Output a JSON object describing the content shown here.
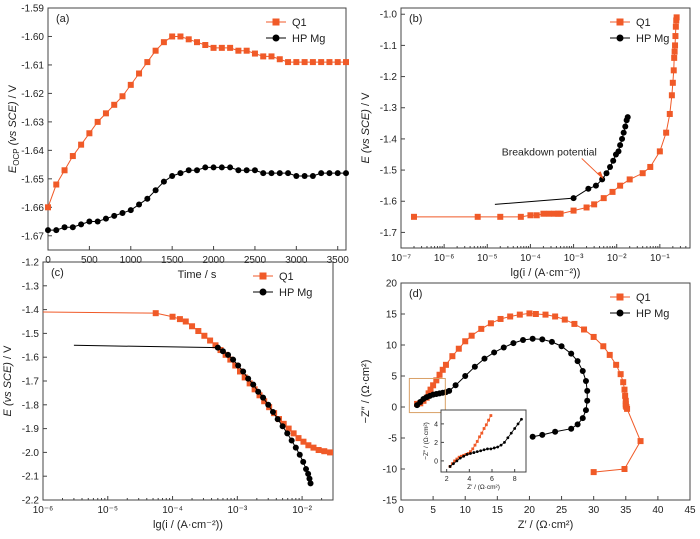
{
  "colors": {
    "q1": "#f05a28",
    "hp": "#000000",
    "axis": "#444444",
    "inset_box": "#d9a066"
  },
  "chart_data": [
    {
      "id": "a",
      "type": "line",
      "panel_label": "(a)",
      "xlabel": "Time / s",
      "ylabel_main": "E",
      "ylabel_sub": "OCP",
      "ylabel_paren": "(vs SCE)",
      "ylabel_tail": " / V",
      "xlim": [
        0,
        3600
      ],
      "ylim": [
        -1.675,
        -1.59
      ],
      "xticks": [
        0,
        500,
        1000,
        1500,
        2000,
        2500,
        3000,
        3500
      ],
      "xtick_labels": [
        "0",
        "500",
        "1000",
        "1500",
        "2000",
        "2500",
        "3000",
        "3500"
      ],
      "yticks": [
        -1.67,
        -1.66,
        -1.65,
        -1.64,
        -1.63,
        -1.62,
        -1.61,
        -1.6,
        -1.59
      ],
      "ytick_labels": [
        "-1.67",
        "-1.66",
        "-1.65",
        "-1.64",
        "-1.63",
        "-1.62",
        "-1.61",
        "-1.60",
        "-1.59"
      ],
      "legend": "top-right",
      "series": [
        {
          "name": "Q1",
          "marker": "square",
          "x": [
            0,
            100,
            200,
            300,
            400,
            500,
            600,
            700,
            800,
            900,
            1000,
            1100,
            1200,
            1300,
            1400,
            1500,
            1600,
            1700,
            1800,
            1900,
            2000,
            2100,
            2200,
            2300,
            2400,
            2500,
            2600,
            2700,
            2800,
            2900,
            3000,
            3100,
            3200,
            3300,
            3400,
            3500,
            3600
          ],
          "y": [
            -1.66,
            -1.652,
            -1.647,
            -1.642,
            -1.638,
            -1.634,
            -1.63,
            -1.627,
            -1.624,
            -1.621,
            -1.617,
            -1.613,
            -1.609,
            -1.605,
            -1.602,
            -1.6,
            -1.6,
            -1.601,
            -1.602,
            -1.603,
            -1.604,
            -1.604,
            -1.604,
            -1.605,
            -1.605,
            -1.606,
            -1.607,
            -1.607,
            -1.608,
            -1.609,
            -1.609,
            -1.609,
            -1.609,
            -1.609,
            -1.609,
            -1.609,
            -1.609
          ]
        },
        {
          "name": "HP Mg",
          "marker": "circle",
          "x": [
            0,
            100,
            200,
            300,
            400,
            500,
            600,
            700,
            800,
            900,
            1000,
            1100,
            1200,
            1300,
            1400,
            1500,
            1600,
            1700,
            1800,
            1900,
            2000,
            2100,
            2200,
            2300,
            2400,
            2500,
            2600,
            2700,
            2800,
            2900,
            3000,
            3100,
            3200,
            3300,
            3400,
            3500,
            3600
          ],
          "y": [
            -1.668,
            -1.668,
            -1.667,
            -1.667,
            -1.666,
            -1.665,
            -1.665,
            -1.664,
            -1.663,
            -1.662,
            -1.661,
            -1.659,
            -1.657,
            -1.654,
            -1.651,
            -1.649,
            -1.648,
            -1.647,
            -1.647,
            -1.646,
            -1.646,
            -1.646,
            -1.646,
            -1.647,
            -1.647,
            -1.647,
            -1.648,
            -1.648,
            -1.648,
            -1.648,
            -1.649,
            -1.649,
            -1.649,
            -1.648,
            -1.648,
            -1.648,
            -1.648
          ]
        }
      ]
    },
    {
      "id": "b",
      "type": "line",
      "panel_label": "(b)",
      "xlabel": "lg(i / (A·cm⁻²))",
      "ylabel_main": "E",
      "ylabel_paren": "(vs SCE)",
      "ylabel_tail": " / V",
      "xscale": "log",
      "xlim": [
        1e-07,
        0.5
      ],
      "ylim": [
        -1.75,
        -0.98
      ],
      "xticks": [
        1e-07,
        1e-06,
        1e-05,
        0.0001,
        0.001,
        0.01,
        0.1
      ],
      "xtick_labels": [
        "10⁻⁷",
        "10⁻⁶",
        "10⁻⁵",
        "10⁻⁴",
        "10⁻³",
        "10⁻²",
        "10⁻¹"
      ],
      "yticks": [
        -1.7,
        -1.6,
        -1.5,
        -1.4,
        -1.3,
        -1.2,
        -1.1,
        -1.0
      ],
      "ytick_labels": [
        "-1.7",
        "-1.6",
        "-1.5",
        "-1.4",
        "-1.3",
        "-1.2",
        "-1.1",
        "-1.0"
      ],
      "legend": "top-right",
      "annotation": {
        "text": "Breakdown potential",
        "x": 0.005,
        "y": -1.53
      },
      "series": [
        {
          "name": "Q1",
          "marker": "square",
          "x": [
            2e-07,
            6e-06,
            2e-05,
            6e-05,
            0.0001,
            0.00014,
            0.0002,
            0.00027,
            0.00036,
            0.00044,
            0.0005,
            0.001,
            0.002,
            0.003,
            0.005,
            0.008,
            0.012,
            0.02,
            0.04,
            0.06,
            0.1,
            0.14,
            0.17,
            0.19,
            0.2,
            0.21,
            0.215,
            0.22,
            0.225,
            0.23,
            0.235,
            0.24,
            0.245
          ],
          "y": [
            -1.65,
            -1.65,
            -1.65,
            -1.65,
            -1.645,
            -1.645,
            -1.64,
            -1.64,
            -1.64,
            -1.64,
            -1.64,
            -1.63,
            -1.62,
            -1.61,
            -1.59,
            -1.57,
            -1.55,
            -1.53,
            -1.51,
            -1.49,
            -1.44,
            -1.38,
            -1.32,
            -1.26,
            -1.22,
            -1.18,
            -1.14,
            -1.12,
            -1.1,
            -1.07,
            -1.04,
            -1.02,
            -1.01
          ]
        },
        {
          "name": "HP Mg",
          "marker": "circle",
          "x": [
            1.5e-05,
            0.001,
            0.0022,
            0.0033,
            0.0046,
            0.0058,
            0.007,
            0.0083,
            0.0096,
            0.011,
            0.012,
            0.0133,
            0.0145,
            0.0158,
            0.017,
            0.018
          ],
          "y": [
            -1.61,
            -1.59,
            -1.56,
            -1.55,
            -1.53,
            -1.51,
            -1.49,
            -1.47,
            -1.45,
            -1.44,
            -1.42,
            -1.4,
            -1.38,
            -1.36,
            -1.34,
            -1.33
          ]
        }
      ]
    },
    {
      "id": "c",
      "type": "line",
      "panel_label": "(c)",
      "xlabel": "lg(i / (A·cm⁻²))",
      "ylabel_main": "E",
      "ylabel_paren": "(vs SCE)",
      "ylabel_tail": " / V",
      "xscale": "log",
      "xlim": [
        1e-06,
        0.03
      ],
      "ylim": [
        -2.2,
        -1.2
      ],
      "xticks": [
        1e-06,
        1e-05,
        0.0001,
        0.001,
        0.01
      ],
      "xtick_labels": [
        "10⁻⁶",
        "10⁻⁵",
        "10⁻⁴",
        "10⁻³",
        "10⁻²"
      ],
      "yticks": [
        -2.2,
        -2.1,
        -2.0,
        -1.9,
        -1.8,
        -1.7,
        -1.6,
        -1.5,
        -1.4,
        -1.3,
        -1.2
      ],
      "ytick_labels": [
        "-2.2",
        "-2.1",
        "-2.0",
        "-1.9",
        "-1.8",
        "-1.7",
        "-1.6",
        "-1.5",
        "-1.4",
        "-1.3",
        "-1.2"
      ],
      "legend": "top-right",
      "series": [
        {
          "name": "Q1",
          "marker": "square",
          "x": [
            1e-06,
            5.5e-05,
            0.0001,
            0.00013,
            0.00016,
            0.0002,
            0.00025,
            0.00031,
            0.00038,
            0.00046,
            0.00055,
            0.00066,
            0.00078,
            0.00093,
            0.0011,
            0.0013,
            0.00155,
            0.00185,
            0.0022,
            0.0026,
            0.0031,
            0.0037,
            0.0044,
            0.0052,
            0.0062,
            0.0074,
            0.0088,
            0.0105,
            0.0125,
            0.015,
            0.018,
            0.022,
            0.027
          ],
          "y": [
            -1.41,
            -1.415,
            -1.43,
            -1.44,
            -1.45,
            -1.47,
            -1.49,
            -1.51,
            -1.53,
            -1.55,
            -1.57,
            -1.59,
            -1.61,
            -1.635,
            -1.66,
            -1.685,
            -1.71,
            -1.735,
            -1.76,
            -1.785,
            -1.81,
            -1.835,
            -1.86,
            -1.88,
            -1.9,
            -1.92,
            -1.94,
            -1.955,
            -1.97,
            -1.98,
            -1.99,
            -1.995,
            -2.0
          ]
        },
        {
          "name": "HP Mg",
          "marker": "circle",
          "x": [
            3e-06,
            0.0005,
            0.0006,
            0.00072,
            0.00086,
            0.00103,
            0.00123,
            0.00147,
            0.00176,
            0.0021,
            0.0025,
            0.003,
            0.00355,
            0.0042,
            0.005,
            0.0059,
            0.0069,
            0.008,
            0.0092,
            0.0104,
            0.0115,
            0.0124,
            0.013,
            0.0135
          ],
          "y": [
            -1.55,
            -1.56,
            -1.575,
            -1.59,
            -1.61,
            -1.635,
            -1.66,
            -1.69,
            -1.715,
            -1.745,
            -1.77,
            -1.8,
            -1.83,
            -1.86,
            -1.89,
            -1.92,
            -1.95,
            -1.98,
            -2.01,
            -2.04,
            -2.07,
            -2.09,
            -2.11,
            -2.13
          ]
        }
      ]
    },
    {
      "id": "d",
      "type": "scatter",
      "panel_label": "(d)",
      "xlabel": "Z′ / (Ω·cm²)",
      "ylabel": "−Z″ / (Ω·cm²)",
      "xlim": [
        0,
        45
      ],
      "ylim": [
        -15,
        20
      ],
      "xticks": [
        0,
        5,
        10,
        15,
        20,
        25,
        30,
        35,
        40,
        45
      ],
      "xtick_labels": [
        "0",
        "5",
        "10",
        "15",
        "20",
        "25",
        "30",
        "35",
        "40",
        "45"
      ],
      "yticks": [
        -15,
        -10,
        -5,
        0,
        5,
        10,
        15,
        20
      ],
      "ytick_labels": [
        "-15",
        "-10",
        "-5",
        "0",
        "5",
        "10",
        "15",
        "20"
      ],
      "legend": "top-right",
      "series": [
        {
          "name": "Q1",
          "marker": "square",
          "x": [
            2.5,
            3.0,
            3.5,
            4.0,
            4.3,
            4.6,
            5.0,
            5.5,
            6.0,
            6.5,
            7.0,
            8.0,
            9.0,
            10.0,
            11.0,
            12.5,
            14.0,
            15.5,
            17.0,
            18.5,
            20.0,
            21.0,
            22.5,
            24.0,
            25.5,
            27.0,
            28.5,
            30.0,
            31.5,
            32.5,
            33.5,
            34.2,
            34.6,
            34.8,
            34.9,
            35.0,
            35.0,
            35.0,
            35.1,
            35.2,
            37.3,
            34.8,
            30.0
          ],
          "y": [
            0.5,
            0.6,
            1.0,
            1.5,
            2.2,
            2.8,
            3.5,
            4.3,
            5.2,
            6.0,
            6.8,
            8.2,
            9.4,
            10.6,
            11.5,
            12.6,
            13.5,
            14.2,
            14.6,
            14.9,
            15.1,
            15.0,
            14.9,
            14.6,
            14.1,
            13.4,
            12.5,
            11.3,
            9.8,
            8.4,
            6.8,
            5.3,
            4.0,
            2.8,
            1.8,
            1.0,
            0.5,
            0.2,
            0.0,
            -0.3,
            -5.5,
            -10.0,
            -10.5
          ]
        },
        {
          "name": "HP Mg",
          "marker": "circle",
          "x": [
            2.5,
            3.0,
            3.5,
            4.0,
            4.5,
            5.0,
            5.5,
            6.0,
            6.5,
            7.0,
            7.5,
            8.5,
            10.0,
            11.5,
            13.0,
            14.5,
            16.0,
            17.5,
            19.0,
            20.5,
            22.0,
            23.5,
            25.0,
            26.5,
            27.5,
            28.3,
            28.8,
            29.0,
            29.0,
            28.8,
            28.3,
            27.5,
            26.5,
            24.0,
            22.0,
            20.5
          ],
          "y": [
            0.3,
            0.8,
            1.3,
            1.6,
            1.8,
            2.0,
            2.1,
            2.2,
            2.3,
            2.4,
            2.6,
            3.5,
            5.0,
            6.5,
            7.8,
            8.8,
            9.6,
            10.3,
            10.8,
            11.0,
            10.9,
            10.5,
            9.8,
            8.6,
            7.4,
            5.8,
            4.2,
            2.6,
            1.0,
            -0.5,
            -1.8,
            -2.8,
            -3.5,
            -4.0,
            -4.5,
            -4.8
          ]
        }
      ],
      "inset": {
        "xlim": [
          1.5,
          9
        ],
        "ylim": [
          -1.2,
          5.5
        ],
        "xticks": [
          2,
          4,
          6,
          8
        ],
        "xtick_labels": [
          "2",
          "4",
          "6",
          "8"
        ],
        "yticks": [
          0,
          2,
          4
        ],
        "ytick_labels": [
          "0",
          "2",
          "4"
        ],
        "xlabel": "Z′ / (Ω·cm²)",
        "ylabel": "−Z″ / (Ω·cm²)",
        "series": [
          {
            "name": "Q1",
            "marker": "square",
            "x": [
              2.3,
              2.5,
              2.7,
              2.9,
              3.1,
              3.3,
              3.5,
              3.7,
              3.9,
              4.1,
              4.3,
              4.5,
              4.7,
              4.9,
              5.1,
              5.3,
              5.5,
              5.7,
              5.9
            ],
            "y": [
              -0.6,
              -0.3,
              0.0,
              0.2,
              0.4,
              0.5,
              0.6,
              0.7,
              0.8,
              1.0,
              1.3,
              1.7,
              2.1,
              2.6,
              3.0,
              3.5,
              3.9,
              4.4,
              4.9
            ]
          },
          {
            "name": "HP Mg",
            "marker": "circle",
            "x": [
              2.3,
              2.6,
              2.9,
              3.2,
              3.5,
              3.8,
              4.1,
              4.4,
              4.7,
              5.0,
              5.3,
              5.6,
              5.9,
              6.2,
              6.5,
              6.8,
              7.1,
              7.4,
              7.7,
              8.0,
              8.3,
              8.6
            ],
            "y": [
              -0.6,
              -0.3,
              0.0,
              0.3,
              0.5,
              0.7,
              0.8,
              0.9,
              1.0,
              1.1,
              1.2,
              1.3,
              1.3,
              1.4,
              1.5,
              1.7,
              2.0,
              2.5,
              3.0,
              3.5,
              4.0,
              4.5
            ]
          }
        ]
      }
    }
  ]
}
